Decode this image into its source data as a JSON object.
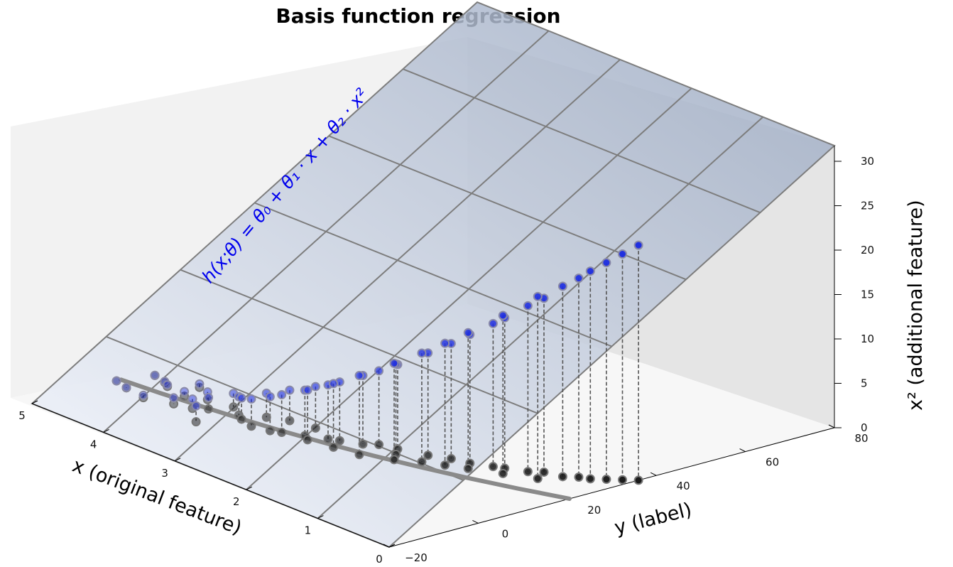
{
  "chart_data": {
    "type": "scatter",
    "title": "Basis function regression",
    "annotation": "h(x;θ) = θ₀ + θ₁ · x + θ₂ · x²",
    "xlabel": "x (original feature)",
    "ylabel": "y (label)",
    "zlabel": "x² (additional feature)",
    "xlim": [
      0,
      5
    ],
    "ylim": [
      -20,
      80
    ],
    "zlim": [
      0,
      30
    ],
    "x_ticks": [
      "0",
      "1",
      "2",
      "3",
      "4",
      "5"
    ],
    "y_ticks": [
      "−20",
      "0",
      "20",
      "40",
      "60",
      "80"
    ],
    "z_ticks": [
      "0",
      "5",
      "10",
      "15",
      "20",
      "25",
      "30"
    ],
    "grid": false,
    "plane_color_low": "#f5f8ff",
    "plane_color_high": "#9aa8c0",
    "point_color_3d": "#1f2fe0",
    "point_color_projection": "#1a1a1a",
    "curve_color": "#8a8a8a",
    "series": [
      {
        "kind": "data-points",
        "x": [
          0.0,
          0.1,
          0.2,
          0.3,
          0.4,
          0.5,
          0.6,
          0.7,
          0.8,
          0.9,
          1.0,
          1.1,
          1.2,
          1.3,
          1.4,
          1.5,
          1.6,
          1.7,
          1.8,
          1.9,
          2.0,
          2.1,
          2.2,
          2.3,
          2.4,
          2.5,
          2.6,
          2.7,
          2.8,
          2.9,
          3.0,
          3.1,
          3.2,
          3.3,
          3.4,
          3.5,
          3.6,
          3.7,
          3.8,
          3.9,
          4.0,
          4.1,
          4.2,
          4.3,
          4.4,
          4.5,
          4.6,
          4.7,
          4.8,
          4.9,
          5.0
        ],
        "y": [
          -1,
          6,
          -2,
          5,
          4,
          -3,
          8,
          3,
          -1,
          5,
          0,
          2,
          6,
          -4,
          4,
          3,
          7,
          2,
          9,
          3,
          4,
          10,
          6,
          5,
          8,
          9,
          6,
          11,
          13,
          7,
          14,
          12,
          10,
          16,
          13,
          18,
          15,
          19,
          17,
          21,
          22,
          20,
          24,
          26,
          23,
          27,
          29,
          30,
          32,
          34,
          36
        ]
      },
      {
        "kind": "model-curve",
        "x": [
          0,
          0.5,
          1,
          1.5,
          2,
          2.5,
          3,
          3.5,
          4,
          4.5,
          5
        ],
        "y": [
          0,
          0.8,
          1.9,
          3.1,
          4.6,
          6.4,
          8.5,
          11.0,
          13.8,
          17.0,
          20.5
        ]
      }
    ]
  }
}
